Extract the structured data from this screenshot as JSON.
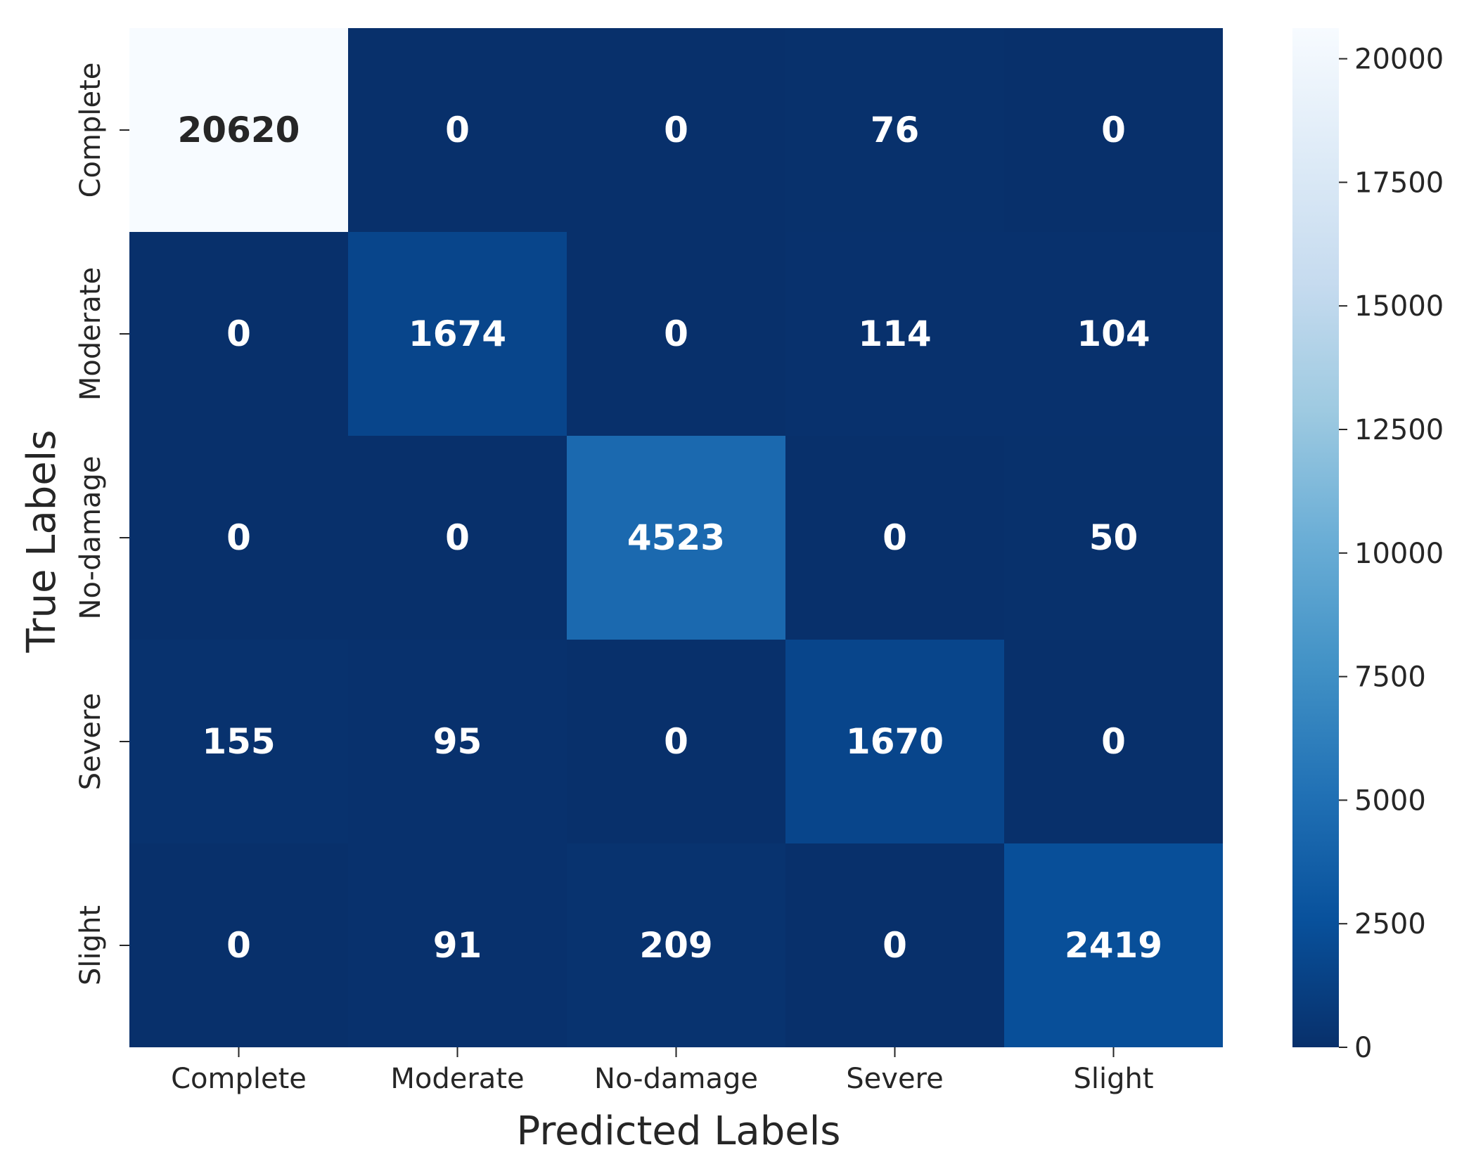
{
  "chart_data": {
    "type": "heatmap",
    "title": "",
    "xlabel": "Predicted Labels",
    "ylabel": "True Labels",
    "x_categories": [
      "Complete",
      "Moderate",
      "No-damage",
      "Severe",
      "Slight"
    ],
    "y_categories": [
      "Complete",
      "Moderate",
      "No-damage",
      "Severe",
      "Slight"
    ],
    "values": [
      [
        20620,
        0,
        0,
        76,
        0
      ],
      [
        0,
        1674,
        0,
        114,
        104
      ],
      [
        0,
        0,
        4523,
        0,
        50
      ],
      [
        155,
        95,
        0,
        1670,
        0
      ],
      [
        0,
        91,
        209,
        0,
        2419
      ]
    ],
    "colormap": "Blues",
    "colorbar": {
      "range": [
        0,
        20620
      ],
      "ticks": [
        0,
        2500,
        5000,
        7500,
        10000,
        12500,
        15000,
        17500,
        20000
      ],
      "tick_labels": [
        "0",
        "2500",
        "5000",
        "7500",
        "10000",
        "12500",
        "15000",
        "17500",
        "20000"
      ]
    },
    "annotations": "cell counts shown in bold",
    "colors": {
      "low": "#08306b",
      "high": "#f7fbff",
      "text_dark": "#262626",
      "text_light": "#ffffff"
    }
  }
}
